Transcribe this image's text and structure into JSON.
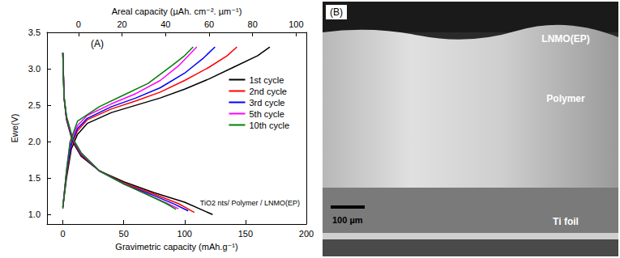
{
  "chart_data": {
    "type": "line",
    "xlabel": "Gravimetric capacity (mAh.g⁻¹)",
    "x2label": "Areal capacity (µAh. cm⁻². µm⁻¹)",
    "ylabel": "Ewe(V)",
    "annotations": [
      "(A)",
      "TiO2 nts/ Polymer / LNMO(EP)"
    ],
    "xlim": [
      -13,
      200
    ],
    "xticks": [
      0,
      50,
      100,
      150,
      200
    ],
    "x2lim": [
      -14.5,
      104.7
    ],
    "x2ticks": [
      0,
      20,
      40,
      60,
      80,
      100
    ],
    "ylim": [
      0.87,
      3.5
    ],
    "yticks": [
      {
        "value": 1,
        "label": "1.0"
      },
      {
        "value": 1.5,
        "label": "1.5"
      },
      {
        "value": 2,
        "label": "2.0"
      },
      {
        "value": 2.5,
        "label": "2.5"
      },
      {
        "value": 3,
        "label": "3.0"
      },
      {
        "value": 3.5,
        "label": "3.5"
      }
    ],
    "grid": false,
    "legend": "upper right",
    "series": [
      {
        "name": "1st cycle",
        "color": "#000000",
        "x": [
          0,
          3,
          7,
          12,
          20,
          40,
          60,
          80,
          100,
          120,
          140,
          160,
          170,
          null,
          0,
          1,
          3,
          8,
          15,
          30,
          50,
          75,
          100,
          123
        ],
        "values": [
          1.1,
          1.5,
          1.9,
          2.1,
          2.25,
          2.4,
          2.5,
          2.6,
          2.72,
          2.86,
          3.02,
          3.18,
          3.3,
          null,
          3.22,
          2.6,
          2.3,
          2.0,
          1.8,
          1.6,
          1.45,
          1.3,
          1.17,
          1.0
        ]
      },
      {
        "name": "2nd cycle",
        "color": "#ff0000",
        "x": [
          0,
          3,
          7,
          12,
          20,
          40,
          60,
          80,
          100,
          120,
          135,
          143,
          null,
          0,
          1,
          3,
          8,
          15,
          30,
          50,
          75,
          95,
          108
        ],
        "values": [
          1.1,
          1.55,
          1.95,
          2.15,
          2.3,
          2.45,
          2.56,
          2.68,
          2.84,
          3.02,
          3.18,
          3.3,
          null,
          3.22,
          2.6,
          2.32,
          2.02,
          1.82,
          1.6,
          1.43,
          1.28,
          1.15,
          1.03
        ]
      },
      {
        "name": "3rd cycle",
        "color": "#0000ff",
        "x": [
          0,
          3,
          7,
          12,
          20,
          40,
          60,
          80,
          100,
          115,
          125,
          null,
          0,
          1,
          3,
          8,
          15,
          30,
          50,
          75,
          92,
          103
        ],
        "values": [
          1.1,
          1.58,
          1.98,
          2.18,
          2.32,
          2.48,
          2.6,
          2.74,
          2.94,
          3.14,
          3.3,
          null,
          3.22,
          2.62,
          2.33,
          2.03,
          1.83,
          1.6,
          1.42,
          1.26,
          1.14,
          1.05
        ]
      },
      {
        "name": "5th cycle",
        "color": "#ff00ff",
        "x": [
          0,
          3,
          6,
          12,
          20,
          40,
          60,
          80,
          95,
          110,
          null,
          0,
          1,
          3,
          8,
          15,
          30,
          50,
          70,
          85,
          95
        ],
        "values": [
          1.1,
          1.6,
          2.0,
          2.22,
          2.36,
          2.52,
          2.66,
          2.84,
          3.04,
          3.3,
          null,
          3.22,
          2.62,
          2.34,
          2.04,
          1.84,
          1.6,
          1.42,
          1.27,
          1.16,
          1.08
        ]
      },
      {
        "name": "10th cycle",
        "color": "#008000",
        "x": [
          0,
          3,
          6,
          12,
          30,
          50,
          70,
          90,
          100,
          107,
          null,
          0,
          1,
          3,
          8,
          15,
          30,
          50,
          70,
          85,
          93
        ],
        "values": [
          1.08,
          1.6,
          2.0,
          2.28,
          2.48,
          2.64,
          2.8,
          3.05,
          3.18,
          3.3,
          null,
          3.22,
          2.62,
          2.35,
          2.05,
          1.85,
          1.6,
          1.42,
          1.27,
          1.15,
          1.07
        ]
      }
    ]
  },
  "image": {
    "panel_label": "(B)",
    "layers": [
      "LNMO(EP)",
      "Polymer",
      "Ti foil"
    ],
    "scale_bar": "100 µm"
  }
}
